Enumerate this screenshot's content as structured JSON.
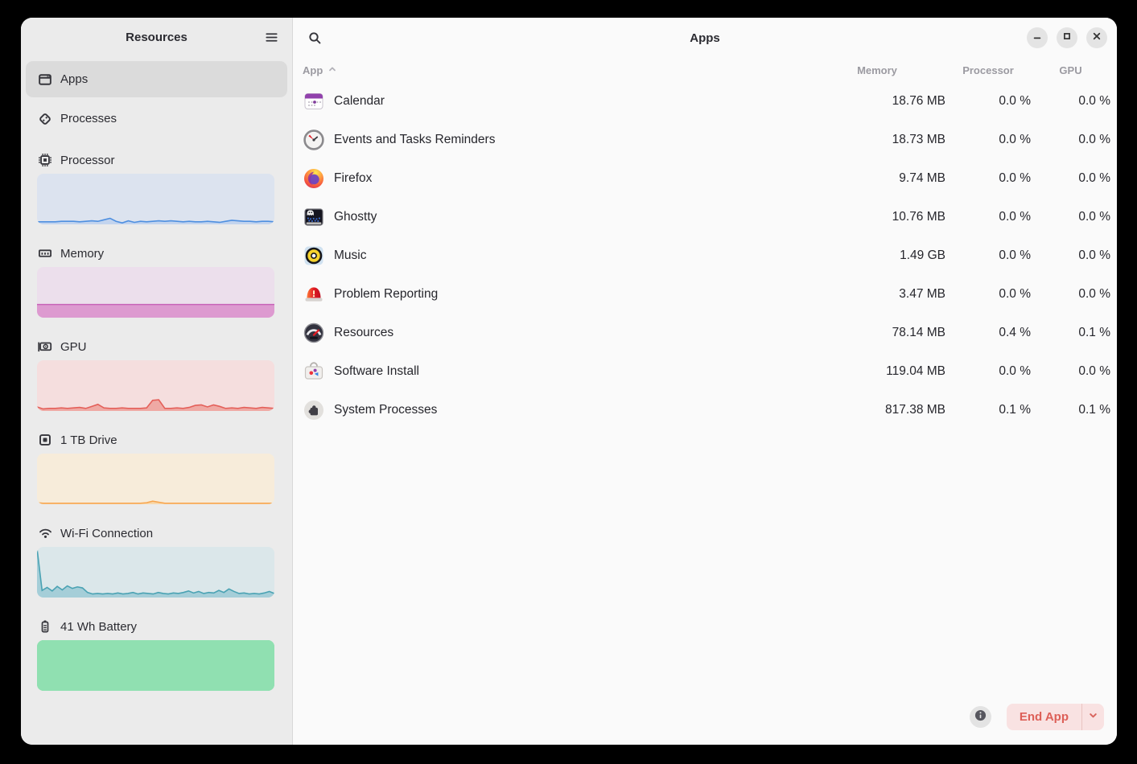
{
  "sidebar": {
    "title": "Resources",
    "menu_icon": "menu-icon",
    "nav": [
      {
        "label": "Apps",
        "icon": "apps-window-icon",
        "selected": true
      },
      {
        "label": "Processes",
        "icon": "processes-icon",
        "selected": false
      }
    ],
    "sections": [
      {
        "label": "Processor",
        "icon": "cpu-icon",
        "colors": {
          "bg": "#dce3ef",
          "fill": "#c3d4ee",
          "line": "#4e8fe0"
        },
        "values": [
          0.05,
          0.05,
          0.05,
          0.05,
          0.06,
          0.06,
          0.06,
          0.05,
          0.06,
          0.07,
          0.06,
          0.09,
          0.12,
          0.06,
          0.03,
          0.07,
          0.04,
          0.06,
          0.05,
          0.06,
          0.07,
          0.06,
          0.07,
          0.06,
          0.05,
          0.06,
          0.05,
          0.05,
          0.06,
          0.05,
          0.04,
          0.06,
          0.08,
          0.07,
          0.06,
          0.06,
          0.05,
          0.06,
          0.06,
          0.05
        ]
      },
      {
        "label": "Memory",
        "icon": "memory-icon",
        "colors": {
          "bg": "#ecdfec",
          "fill": "#dd9ad0",
          "line": "#c763b8"
        },
        "values": [
          0.26,
          0.26
        ]
      },
      {
        "label": "GPU",
        "icon": "gpu-icon",
        "colors": {
          "bg": "#f5dede",
          "fill": "#efa9a4",
          "line": "#e4605a"
        },
        "values": [
          0.08,
          0.04,
          0.05,
          0.05,
          0.06,
          0.05,
          0.06,
          0.07,
          0.05,
          0.09,
          0.13,
          0.06,
          0.05,
          0.05,
          0.06,
          0.05,
          0.05,
          0.05,
          0.06,
          0.21,
          0.22,
          0.05,
          0.05,
          0.06,
          0.05,
          0.07,
          0.11,
          0.12,
          0.08,
          0.12,
          0.09,
          0.05,
          0.06,
          0.05,
          0.07,
          0.06,
          0.05,
          0.07,
          0.06,
          0.05
        ]
      },
      {
        "label": "1 TB Drive",
        "icon": "drive-icon",
        "colors": {
          "bg": "#f7ecda",
          "fill": "#f7d8ac",
          "line": "#f7a54e"
        },
        "values": [
          0.03,
          0.02,
          0.02,
          0.02,
          0.02,
          0.02,
          0.02,
          0.02,
          0.02,
          0.02,
          0.02,
          0.02,
          0.02,
          0.02,
          0.02,
          0.02,
          0.02,
          0.02,
          0.03,
          0.06,
          0.04,
          0.02,
          0.02,
          0.02,
          0.02,
          0.02,
          0.02,
          0.02,
          0.02,
          0.02,
          0.02,
          0.02,
          0.02,
          0.02,
          0.02,
          0.02,
          0.02,
          0.02,
          0.02,
          0.02
        ]
      },
      {
        "label": "Wi-Fi Connection",
        "icon": "wifi-icon",
        "colors": {
          "bg": "#dbe7ea",
          "fill": "#a5ced8",
          "line": "#4aa2b3"
        },
        "values": [
          0.97,
          0.14,
          0.2,
          0.13,
          0.22,
          0.15,
          0.23,
          0.18,
          0.21,
          0.19,
          0.1,
          0.07,
          0.08,
          0.07,
          0.08,
          0.07,
          0.09,
          0.07,
          0.08,
          0.1,
          0.07,
          0.09,
          0.08,
          0.07,
          0.1,
          0.08,
          0.07,
          0.09,
          0.08,
          0.1,
          0.13,
          0.09,
          0.12,
          0.08,
          0.1,
          0.09,
          0.14,
          0.1,
          0.17,
          0.12,
          0.08,
          0.09,
          0.07,
          0.08,
          0.07,
          0.09,
          0.12,
          0.08
        ]
      },
      {
        "label": "41 Wh Battery",
        "icon": "battery-icon",
        "colors": {
          "bg": "#90e0b1",
          "fill": "#90e0b1",
          "line": "#90e0b1"
        },
        "values": [
          1,
          1
        ]
      }
    ]
  },
  "header": {
    "title": "Apps",
    "search_icon": "search-icon",
    "controls": [
      {
        "name": "minimize",
        "icon": "minimize-icon"
      },
      {
        "name": "maximize",
        "icon": "maximize-icon"
      },
      {
        "name": "close",
        "icon": "close-icon"
      }
    ]
  },
  "table": {
    "columns": [
      "App",
      "Memory",
      "Processor",
      "GPU"
    ],
    "sort": {
      "column": "App",
      "direction": "ascending"
    },
    "rows": [
      {
        "app": "Calendar",
        "icon": "calendar-app-icon",
        "memory": "18.76 MB",
        "processor": "0.0 %",
        "gpu": "0.0 %"
      },
      {
        "app": "Events and Tasks Reminders",
        "icon": "events-clock-icon",
        "memory": "18.73 MB",
        "processor": "0.0 %",
        "gpu": "0.0 %"
      },
      {
        "app": "Firefox",
        "icon": "firefox-icon",
        "memory": "9.74 MB",
        "processor": "0.0 %",
        "gpu": "0.0 %"
      },
      {
        "app": "Ghostty",
        "icon": "ghostty-icon",
        "memory": "10.76 MB",
        "processor": "0.0 %",
        "gpu": "0.0 %"
      },
      {
        "app": "Music",
        "icon": "music-icon",
        "memory": "1.49 GB",
        "processor": "0.0 %",
        "gpu": "0.0 %"
      },
      {
        "app": "Problem Reporting",
        "icon": "problem-reporting-icon",
        "memory": "3.47 MB",
        "processor": "0.0 %",
        "gpu": "0.0 %"
      },
      {
        "app": "Resources",
        "icon": "resources-app-icon",
        "memory": "78.14 MB",
        "processor": "0.4 %",
        "gpu": "0.1 %"
      },
      {
        "app": "Software Install",
        "icon": "software-install-icon",
        "memory": "119.04 MB",
        "processor": "0.0 %",
        "gpu": "0.0 %"
      },
      {
        "app": "System Processes",
        "icon": "system-processes-icon",
        "memory": "817.38 MB",
        "processor": "0.1 %",
        "gpu": "0.1 %"
      }
    ]
  },
  "footer": {
    "info_icon": "info-icon",
    "end_app_label": "End App",
    "end_app_color": "#dd5f57",
    "end_app_bg": "#f9e2e2"
  }
}
